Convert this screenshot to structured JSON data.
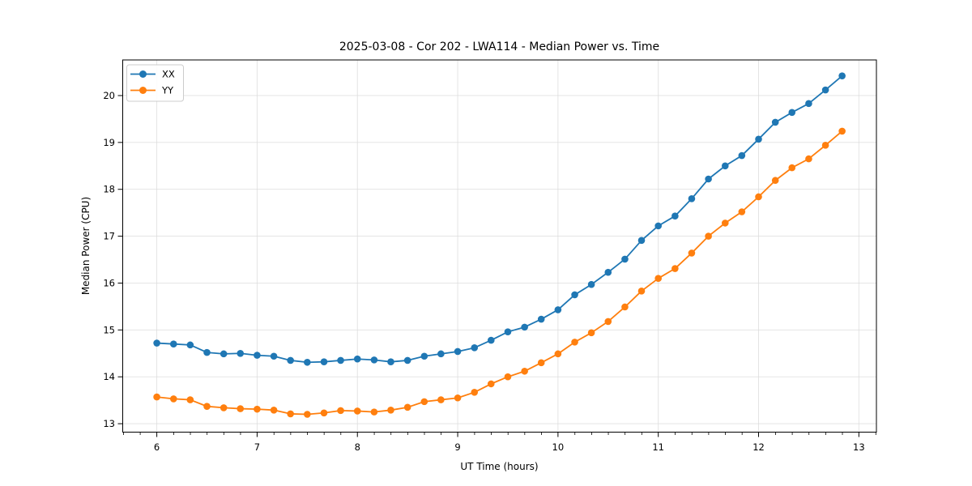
{
  "figure": {
    "background": "#ffffff",
    "plot_background": "#ffffff",
    "spine_color": "#000000",
    "grid_color": "#dcdcdc",
    "text_color": "#000000"
  },
  "legend": {
    "position": "upper-left",
    "entries": [
      {
        "label": "XX",
        "color": "#1f77b4"
      },
      {
        "label": "YY",
        "color": "#ff7f0e"
      }
    ]
  },
  "chart_data": {
    "type": "line",
    "title": "2025-03-08 - Cor 202 - LWA114 - Median Power vs. Time",
    "xlabel": "UT Time (hours)",
    "ylabel": "Median Power (CPU)",
    "xlim": [
      5.66,
      13.175
    ],
    "ylim": [
      12.82,
      20.76
    ],
    "xticks": [
      6,
      7,
      8,
      9,
      10,
      11,
      12,
      13
    ],
    "yticks": [
      13,
      14,
      15,
      16,
      17,
      18,
      19,
      20
    ],
    "x_minor_tick_step": 0.1667,
    "grid": true,
    "legend_position": "upper-left",
    "marker": "o",
    "x": [
      6.0,
      6.167,
      6.333,
      6.5,
      6.667,
      6.833,
      7.0,
      7.167,
      7.333,
      7.5,
      7.667,
      7.833,
      8.0,
      8.167,
      8.333,
      8.5,
      8.667,
      8.833,
      9.0,
      9.167,
      9.333,
      9.5,
      9.667,
      9.833,
      10.0,
      10.167,
      10.333,
      10.5,
      10.667,
      10.833,
      11.0,
      11.167,
      11.333,
      11.5,
      11.667,
      11.833,
      12.0,
      12.167,
      12.333,
      12.5,
      12.667,
      12.833
    ],
    "series": [
      {
        "name": "XX",
        "color": "#1f77b4",
        "values": [
          14.72,
          14.7,
          14.68,
          14.52,
          14.49,
          14.5,
          14.46,
          14.44,
          14.35,
          14.31,
          14.32,
          14.35,
          14.38,
          14.36,
          14.32,
          14.35,
          14.44,
          14.49,
          14.54,
          14.62,
          14.78,
          14.96,
          15.06,
          15.23,
          15.43,
          15.75,
          15.97,
          16.23,
          16.51,
          16.91,
          17.22,
          17.43,
          17.8,
          18.22,
          18.5,
          18.72,
          19.07,
          19.43,
          19.64,
          19.83,
          20.12,
          20.42
        ]
      },
      {
        "name": "YY",
        "color": "#ff7f0e",
        "values": [
          13.57,
          13.53,
          13.51,
          13.37,
          13.34,
          13.32,
          13.31,
          13.29,
          13.21,
          13.2,
          13.23,
          13.28,
          13.27,
          13.25,
          13.29,
          13.35,
          13.47,
          13.51,
          13.55,
          13.67,
          13.85,
          14.0,
          14.12,
          14.3,
          14.49,
          14.74,
          14.94,
          15.18,
          15.49,
          15.83,
          16.1,
          16.31,
          16.64,
          17.0,
          17.28,
          17.52,
          17.84,
          18.19,
          18.46,
          18.65,
          18.94,
          19.24
        ]
      }
    ]
  }
}
